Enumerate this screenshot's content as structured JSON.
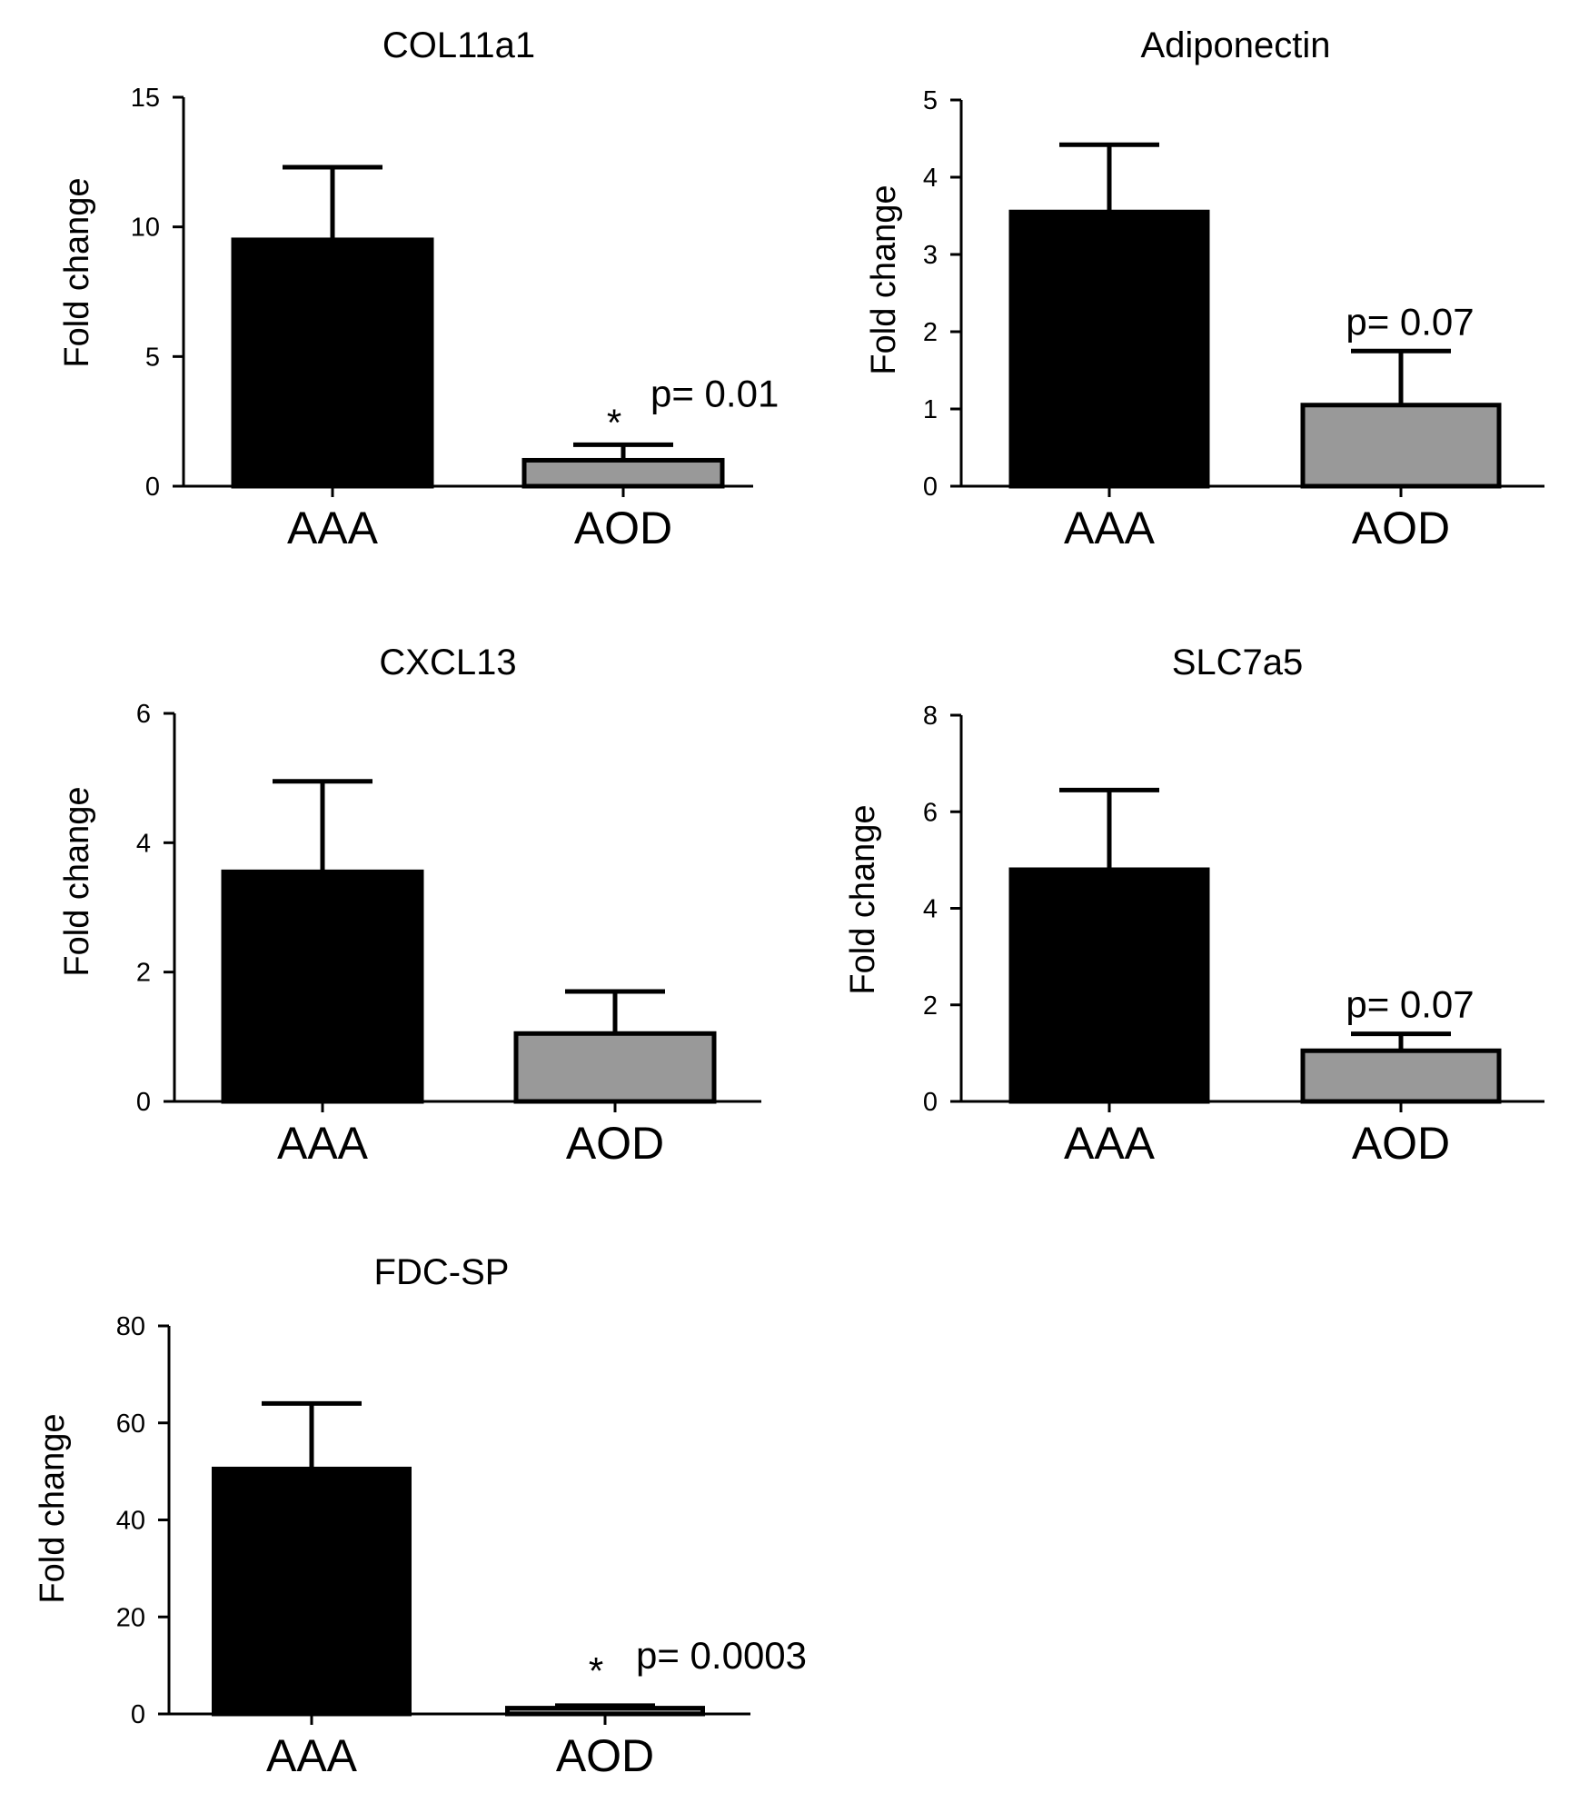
{
  "chart_data": [
    {
      "type": "bar",
      "title": "COL11a1",
      "ylabel": "Fold change",
      "xlabel": "",
      "ylim": [
        0,
        15
      ],
      "yticks": [
        0,
        5,
        10,
        15
      ],
      "categories": [
        "AAA",
        "AOD"
      ],
      "values": [
        9.5,
        1.0
      ],
      "errors": [
        2.8,
        0.6
      ],
      "bar_colors": [
        "#000000",
        "#999999"
      ],
      "annotations": [
        {
          "category": "AOD",
          "star": "*",
          "text": "p= 0.01"
        }
      ]
    },
    {
      "type": "bar",
      "title": "Adiponectin",
      "ylabel": "Fold change",
      "xlabel": "",
      "ylim": [
        0,
        5
      ],
      "yticks": [
        0,
        1,
        2,
        3,
        4,
        5
      ],
      "categories": [
        "AAA",
        "AOD"
      ],
      "values": [
        3.55,
        1.05
      ],
      "errors": [
        0.87,
        0.7
      ],
      "bar_colors": [
        "#000000",
        "#999999"
      ],
      "annotations": [
        {
          "category": "AOD",
          "star": "",
          "text": "p= 0.07"
        }
      ]
    },
    {
      "type": "bar",
      "title": "CXCL13",
      "ylabel": "Fold change",
      "xlabel": "",
      "ylim": [
        0,
        6
      ],
      "yticks": [
        0,
        2,
        4,
        6
      ],
      "categories": [
        "AAA",
        "AOD"
      ],
      "values": [
        3.55,
        1.05
      ],
      "errors": [
        1.4,
        0.65
      ],
      "bar_colors": [
        "#000000",
        "#999999"
      ],
      "annotations": []
    },
    {
      "type": "bar",
      "title": "SLC7a5",
      "ylabel": "Fold change",
      "xlabel": "",
      "ylim": [
        0,
        8
      ],
      "yticks": [
        0,
        2,
        4,
        6,
        8
      ],
      "categories": [
        "AAA",
        "AOD"
      ],
      "values": [
        4.8,
        1.05
      ],
      "errors": [
        1.65,
        0.35
      ],
      "bar_colors": [
        "#000000",
        "#999999"
      ],
      "annotations": [
        {
          "category": "AOD",
          "star": "",
          "text": "p= 0.07"
        }
      ]
    },
    {
      "type": "bar",
      "title": "FDC-SP",
      "ylabel": "Fold change",
      "xlabel": "",
      "ylim": [
        0,
        80
      ],
      "yticks": [
        0,
        20,
        40,
        60,
        80
      ],
      "categories": [
        "AAA",
        "AOD"
      ],
      "values": [
        50.5,
        1.2
      ],
      "errors": [
        13.5,
        0.5
      ],
      "bar_colors": [
        "#000000",
        "#999999"
      ],
      "annotations": [
        {
          "category": "AOD",
          "star": "*",
          "text": "p= 0.0003"
        }
      ]
    }
  ]
}
